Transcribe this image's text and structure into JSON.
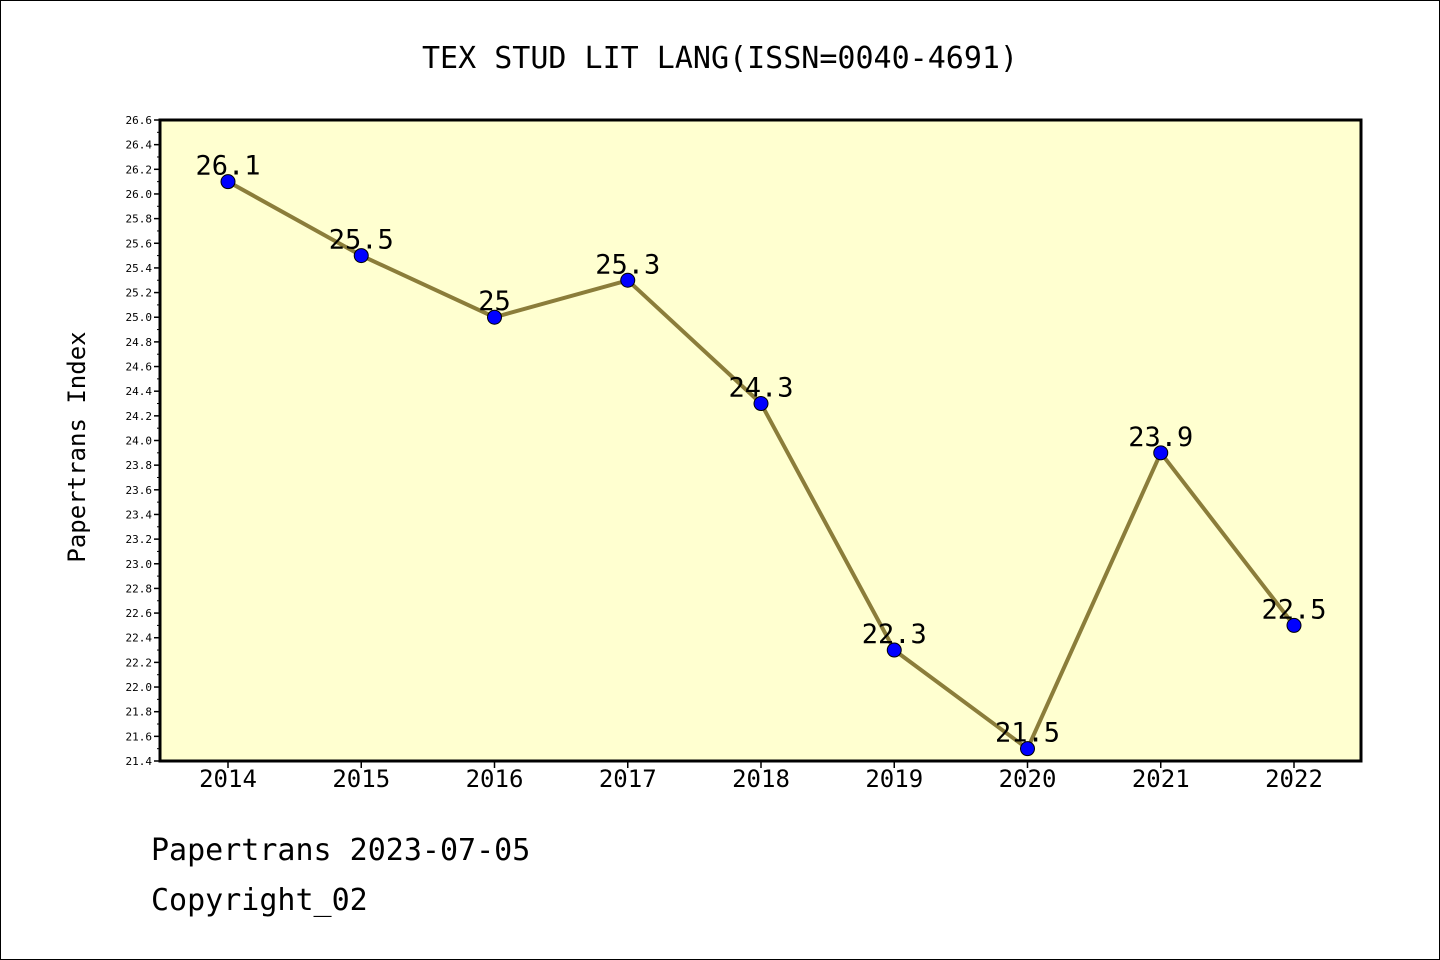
{
  "chart_data": {
    "type": "line",
    "title": "TEX STUD LIT LANG(ISSN=0040-4691)",
    "ylabel": "Papertrans Index",
    "xlabel": "",
    "categories": [
      "2014",
      "2015",
      "2016",
      "2017",
      "2018",
      "2019",
      "2020",
      "2021",
      "2022"
    ],
    "values": [
      26.1,
      25.5,
      25.0,
      25.3,
      24.3,
      22.3,
      21.5,
      23.9,
      22.5
    ],
    "data_labels": [
      "26.1",
      "25.5",
      "25",
      "25.3",
      "24.3",
      "22.3",
      "21.5",
      "23.9",
      "22.5"
    ],
    "ylim": [
      21.4,
      26.6
    ],
    "y_tick_step": 0.2,
    "grid": false,
    "colors": {
      "plot_background": "#ffffd0",
      "line": "#8b7d3a",
      "marker": "#0000ff"
    }
  },
  "footer": {
    "line1": "Papertrans 2023-07-05",
    "line2": "Copyright_02"
  }
}
